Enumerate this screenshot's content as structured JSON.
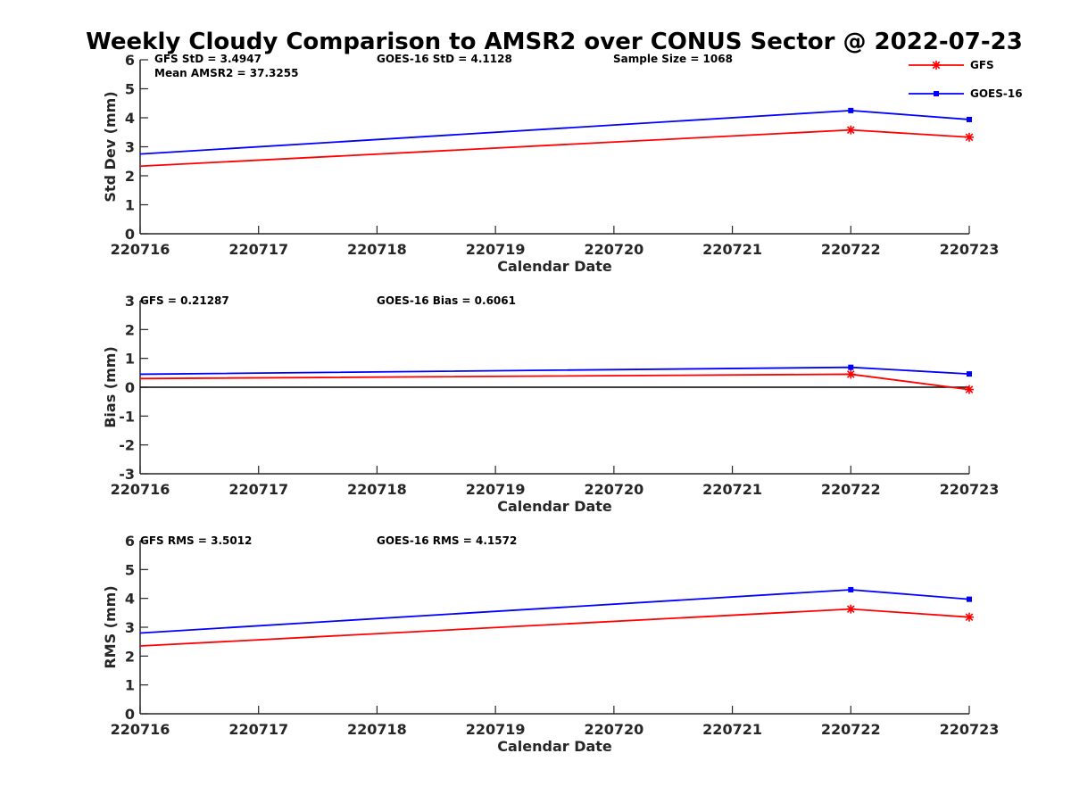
{
  "title": "Weekly Cloudy Comparison to AMSR2 over CONUS Sector @ 2022-07-23",
  "legend": {
    "position": "top-right",
    "entries": [
      {
        "name": "GFS",
        "color": "#ff0000",
        "marker": "asterisk"
      },
      {
        "name": "GOES-16",
        "color": "#0000ff",
        "marker": "square"
      }
    ]
  },
  "chart_data": [
    {
      "type": "line",
      "xlabel": "Calendar Date",
      "ylabel": "Std Dev (mm)",
      "x_ticks": [
        "220716",
        "220717",
        "220718",
        "220719",
        "220720",
        "220721",
        "220722",
        "220723"
      ],
      "ylim": [
        0,
        6
      ],
      "y_ticks": [
        "0",
        "1",
        "2",
        "3",
        "4",
        "5",
        "6"
      ],
      "annotations": [
        "GFS StD = 3.4947",
        "GOES-16 StD = 4.1128",
        "Sample Size = 1068",
        "Mean AMSR2 = 37.3255"
      ],
      "series": [
        {
          "name": "GFS",
          "color": "#ff0000",
          "x": [
            "220716",
            "220722",
            "220723"
          ],
          "values": [
            2.33,
            3.58,
            3.33
          ]
        },
        {
          "name": "GOES-16",
          "color": "#0000ff",
          "x": [
            "220716",
            "220722",
            "220723"
          ],
          "values": [
            2.75,
            4.25,
            3.94
          ]
        }
      ]
    },
    {
      "type": "line",
      "xlabel": "Calendar Date",
      "ylabel": "Bias (mm)",
      "x_ticks": [
        "220716",
        "220717",
        "220718",
        "220719",
        "220720",
        "220721",
        "220722",
        "220723"
      ],
      "ylim": [
        -3,
        3
      ],
      "y_ticks": [
        "-3",
        "-2",
        "-1",
        "0",
        "1",
        "2",
        "3"
      ],
      "zero_line": true,
      "annotations": [
        "GFS = 0.21287",
        "GOES-16 Bias  = 0.6061"
      ],
      "series": [
        {
          "name": "GFS",
          "color": "#ff0000",
          "x": [
            "220716",
            "220722",
            "220723"
          ],
          "values": [
            0.3,
            0.45,
            -0.08
          ]
        },
        {
          "name": "GOES-16",
          "color": "#0000ff",
          "x": [
            "220716",
            "220722",
            "220723"
          ],
          "values": [
            0.45,
            0.69,
            0.46
          ]
        }
      ]
    },
    {
      "type": "line",
      "xlabel": "Calendar Date",
      "ylabel": "RMS (mm)",
      "x_ticks": [
        "220716",
        "220717",
        "220718",
        "220719",
        "220720",
        "220721",
        "220722",
        "220723"
      ],
      "ylim": [
        0,
        6
      ],
      "y_ticks": [
        "0",
        "1",
        "2",
        "3",
        "4",
        "5",
        "6"
      ],
      "annotations": [
        "GFS RMS = 3.5012",
        "GOES-16 RMS = 4.1572"
      ],
      "series": [
        {
          "name": "GFS",
          "color": "#ff0000",
          "x": [
            "220716",
            "220722",
            "220723"
          ],
          "values": [
            2.35,
            3.63,
            3.35
          ]
        },
        {
          "name": "GOES-16",
          "color": "#0000ff",
          "x": [
            "220716",
            "220722",
            "220723"
          ],
          "values": [
            2.8,
            4.3,
            3.97
          ]
        }
      ]
    }
  ]
}
